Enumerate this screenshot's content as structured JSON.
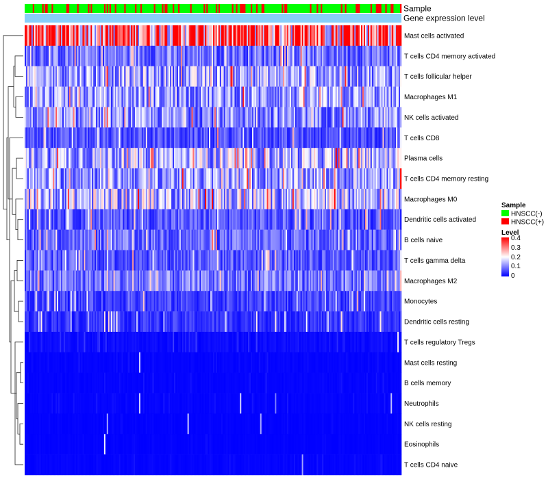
{
  "chart_data": {
    "type": "heatmap",
    "title": "",
    "annotation_rows": [
      {
        "label": "Sample"
      },
      {
        "label": "Gene expression level"
      }
    ],
    "row_labels": [
      "Mast cells activated",
      "T cells CD4 memory activated",
      "T cells follicular helper",
      "Macrophages M1",
      "NK cells activated",
      "T cells CD8",
      "Plasma cells",
      "T cells CD4 memory resting",
      "Macrophages M0",
      "Dendritic cells activated",
      "B cells naive",
      "T cells gamma delta",
      "Macrophages M2",
      "Monocytes",
      "Dendritic cells resting",
      "T cells regulatory  Tregs",
      "Mast cells resting",
      "B cells memory",
      "Neutrophils",
      "NK cells resting",
      "Eosinophils",
      "T cells CD4 naive"
    ],
    "row_typical_level": [
      0.32,
      0.09,
      0.13,
      0.12,
      0.11,
      0.06,
      0.14,
      0.12,
      0.15,
      0.07,
      0.08,
      0.07,
      0.09,
      0.05,
      0.04,
      0.03,
      0.01,
      0.01,
      0.01,
      0.005,
      0.005,
      0.01
    ],
    "n_samples": 280,
    "samples_positive_fraction": 0.25,
    "sample_groups": [
      {
        "name": "HNSCC(-)",
        "color": "#00ff00"
      },
      {
        "name": "HNSCC(+)",
        "color": "#ff0000"
      }
    ],
    "level_colors": {
      "low": "#0000ff",
      "mid": "#ffffff",
      "high": "#ff0000"
    },
    "level_range": [
      0,
      0.4
    ],
    "expression_bar_color": "#87cefa",
    "legend": {
      "sample_title": "Sample",
      "level_title": "Level",
      "level_ticks": [
        "0.4",
        "0.3",
        "0.2",
        "0.1",
        "0"
      ]
    }
  }
}
